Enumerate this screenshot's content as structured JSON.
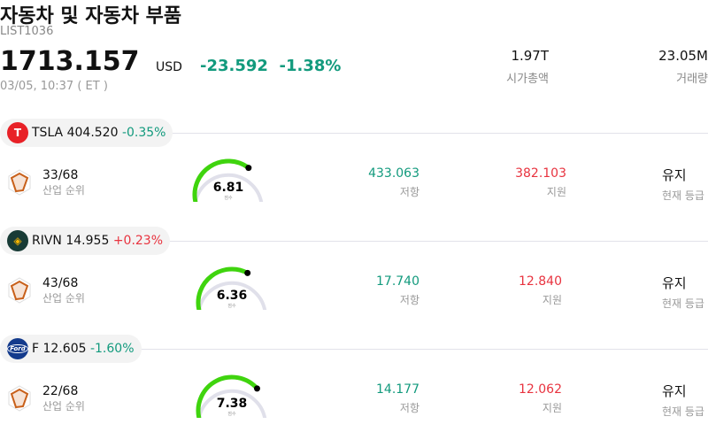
{
  "header": {
    "title": "자동차 및 자동차 부품",
    "code": "LIST1036",
    "price": "1713.157",
    "currency": "USD",
    "change": "-23.592",
    "change_pct": "-1.38%",
    "time": "03/05, 10:37 ( ET )",
    "market_cap": {
      "value": "1.97T",
      "label": "시가총액"
    },
    "volume": {
      "value": "23.05M",
      "label": "거래량"
    }
  },
  "colors": {
    "down": "#129a7d",
    "up": "#e8333f",
    "gauge": "#3fd40e"
  },
  "stocks": [
    {
      "ticker": "TSLA",
      "price": "404.520",
      "change": "-0.35%",
      "dir": "down",
      "logo_color": "#e82127",
      "logo_icon": "tesla-logo",
      "rank": "33/68",
      "rank_label": "산업 순위",
      "score": "6.81",
      "score_value": 6.81,
      "score_label": "점수",
      "resistance": "433.063",
      "resistance_label": "저항",
      "support": "382.103",
      "support_label": "지원",
      "rating": "유지",
      "rating_label": "현재 등급"
    },
    {
      "ticker": "RIVN",
      "price": "14.955",
      "change": "+0.23%",
      "dir": "up",
      "logo_color": "#183b36",
      "logo_icon": "rivian-logo",
      "rank": "43/68",
      "rank_label": "산업 순위",
      "score": "6.36",
      "score_value": 6.36,
      "score_label": "점수",
      "resistance": "17.740",
      "resistance_label": "저항",
      "support": "12.840",
      "support_label": "지원",
      "rating": "유지",
      "rating_label": "현재 등급"
    },
    {
      "ticker": "F",
      "price": "12.605",
      "change": "-1.60%",
      "dir": "down",
      "logo_color": "#133a8c",
      "logo_icon": "ford-logo",
      "rank": "22/68",
      "rank_label": "산업 순위",
      "score": "7.38",
      "score_value": 7.38,
      "score_label": "점수",
      "resistance": "14.177",
      "resistance_label": "저항",
      "support": "12.062",
      "support_label": "지원",
      "rating": "유지",
      "rating_label": "현재 등급"
    }
  ]
}
